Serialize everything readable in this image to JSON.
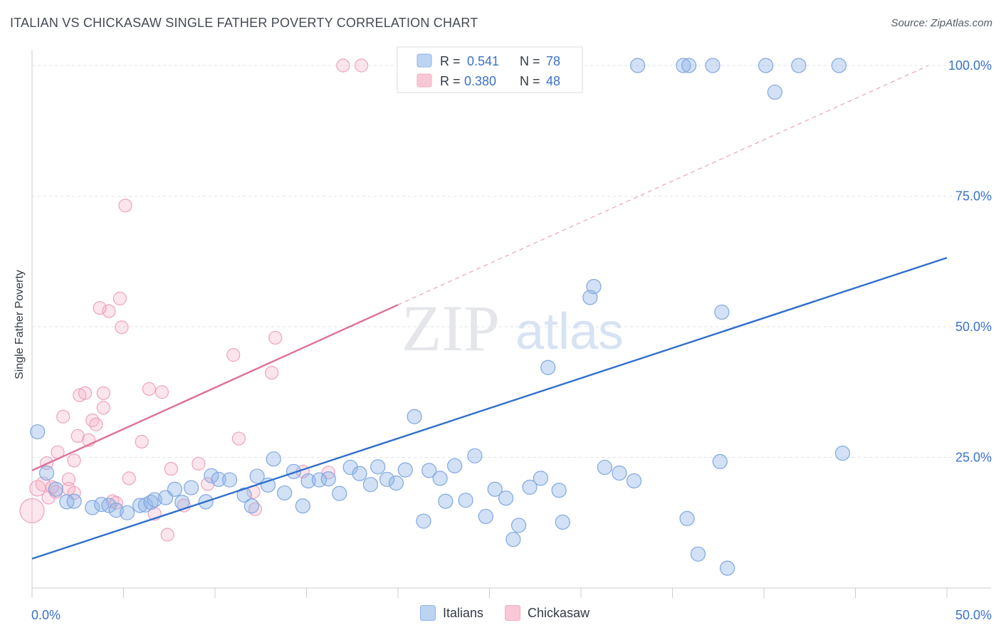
{
  "header": {
    "title": "ITALIAN VS CHICKASAW SINGLE FATHER POVERTY CORRELATION CHART",
    "source": "Source: ZipAtlas.com"
  },
  "watermark": {
    "zip": "ZIP",
    "atlas": "atlas"
  },
  "colors": {
    "blue": "#8fb4e8",
    "blue_line": "#2f6fcc",
    "pink": "#f5a9c0",
    "pink_line": "#e07096",
    "tick_blue": "#3a72c8"
  },
  "legend_box": [
    {
      "r_label": "R =",
      "r_value": "0.541",
      "n_label": "N =",
      "n_value": "78",
      "series": "Italians"
    },
    {
      "r_label": "R =",
      "r_value": "0.380",
      "n_label": "N =",
      "n_value": "48",
      "series": "Chickasaw"
    }
  ],
  "legend_bottom": [
    {
      "label": "Italians",
      "series": "Italians"
    },
    {
      "label": "Chickasaw",
      "series": "Chickasaw"
    }
  ],
  "chart_data": {
    "type": "scatter",
    "title": "ITALIAN VS CHICKASAW SINGLE FATHER POVERTY CORRELATION CHART",
    "xlabel": "",
    "ylabel": "Single Father Poverty",
    "xlim": [
      0,
      50
    ],
    "ylim": [
      0,
      103
    ],
    "x_tick_labels": [
      "0.0%",
      "50.0%"
    ],
    "y_ticks": [
      25,
      50,
      75,
      100
    ],
    "y_tick_labels": [
      "25.0%",
      "50.0%",
      "75.0%",
      "100.0%"
    ],
    "grid": true,
    "series": [
      {
        "name": "Italians",
        "r": 0.541,
        "n": 78,
        "trend": {
          "x": [
            0,
            50
          ],
          "y": [
            5.6,
            63.2
          ],
          "style": "solid"
        },
        "points": [
          [
            0.3,
            29.9
          ],
          [
            0.8,
            22.0
          ],
          [
            1.3,
            18.9
          ],
          [
            1.9,
            16.5
          ],
          [
            2.3,
            16.6
          ],
          [
            3.3,
            15.4
          ],
          [
            3.8,
            16.0
          ],
          [
            4.2,
            15.8
          ],
          [
            4.6,
            14.9
          ],
          [
            5.2,
            14.4
          ],
          [
            5.9,
            15.8
          ],
          [
            6.2,
            15.9
          ],
          [
            6.5,
            16.4
          ],
          [
            6.7,
            16.9
          ],
          [
            7.3,
            17.3
          ],
          [
            7.8,
            18.9
          ],
          [
            8.2,
            16.4
          ],
          [
            8.7,
            19.2
          ],
          [
            9.5,
            16.5
          ],
          [
            9.8,
            21.5
          ],
          [
            10.2,
            20.8
          ],
          [
            10.8,
            20.7
          ],
          [
            11.6,
            17.8
          ],
          [
            12.0,
            15.7
          ],
          [
            12.3,
            21.4
          ],
          [
            12.9,
            19.7
          ],
          [
            13.2,
            24.7
          ],
          [
            13.8,
            18.2
          ],
          [
            14.3,
            22.3
          ],
          [
            14.8,
            15.7
          ],
          [
            15.1,
            20.5
          ],
          [
            15.7,
            20.7
          ],
          [
            16.2,
            20.9
          ],
          [
            16.8,
            18.1
          ],
          [
            17.4,
            23.1
          ],
          [
            17.9,
            21.9
          ],
          [
            18.5,
            19.8
          ],
          [
            18.9,
            23.2
          ],
          [
            19.4,
            20.8
          ],
          [
            19.9,
            20.1
          ],
          [
            20.4,
            22.6
          ],
          [
            20.9,
            32.8
          ],
          [
            21.4,
            12.8
          ],
          [
            21.7,
            22.5
          ],
          [
            22.3,
            21.0
          ],
          [
            22.6,
            16.6
          ],
          [
            23.1,
            23.4
          ],
          [
            23.7,
            16.8
          ],
          [
            24.2,
            25.3
          ],
          [
            24.8,
            13.7
          ],
          [
            25.3,
            18.9
          ],
          [
            25.9,
            17.2
          ],
          [
            26.3,
            9.3
          ],
          [
            26.6,
            12.0
          ],
          [
            27.2,
            19.3
          ],
          [
            27.8,
            21.0
          ],
          [
            28.2,
            42.2
          ],
          [
            28.8,
            18.7
          ],
          [
            29.0,
            12.6
          ],
          [
            30.5,
            55.6
          ],
          [
            30.7,
            57.7
          ],
          [
            31.3,
            23.1
          ],
          [
            32.1,
            22.0
          ],
          [
            32.9,
            20.5
          ],
          [
            33.1,
            100.0
          ],
          [
            35.6,
            100.0
          ],
          [
            35.9,
            100.0
          ],
          [
            35.8,
            13.3
          ],
          [
            36.4,
            6.5
          ],
          [
            37.2,
            100.0
          ],
          [
            37.6,
            24.2
          ],
          [
            37.7,
            52.8
          ],
          [
            38.0,
            3.8
          ],
          [
            40.1,
            100.0
          ],
          [
            40.6,
            94.9
          ],
          [
            41.9,
            100.0
          ],
          [
            44.1,
            100.0
          ],
          [
            44.3,
            25.8
          ]
        ],
        "sizes": [
          20,
          20,
          20,
          20,
          20,
          20,
          20,
          20,
          20,
          20,
          20,
          20,
          20,
          20,
          20,
          20,
          20,
          20,
          20,
          20,
          20,
          20,
          20,
          20,
          20,
          20,
          20,
          20,
          20,
          20,
          20,
          20,
          20,
          20,
          20,
          20,
          20,
          20,
          20,
          20,
          20,
          20,
          20,
          20,
          20,
          20,
          20,
          20,
          20,
          20,
          20,
          20,
          20,
          20,
          20,
          20,
          20,
          20,
          20,
          20,
          20,
          20,
          20,
          20,
          20,
          20,
          20,
          20,
          20,
          20,
          20,
          20,
          20,
          20,
          20,
          20,
          20,
          20
        ]
      },
      {
        "name": "Chickasaw",
        "r": 0.38,
        "n": 48,
        "trend": {
          "x": [
            0,
            20
          ],
          "y": [
            22.5,
            54.2
          ],
          "style": "solid",
          "extension": {
            "x": [
              20,
              49
            ],
            "y": [
              54.2,
              100.0
            ],
            "style": "dashed"
          }
        },
        "points": [
          [
            0.0,
            14.8
          ],
          [
            0.3,
            19.1
          ],
          [
            0.6,
            19.9
          ],
          [
            0.9,
            17.3
          ],
          [
            0.8,
            23.9
          ],
          [
            1.1,
            19.3
          ],
          [
            1.3,
            18.4
          ],
          [
            1.4,
            26.0
          ],
          [
            1.7,
            32.8
          ],
          [
            2.0,
            19.0
          ],
          [
            2.3,
            18.2
          ],
          [
            2.3,
            24.4
          ],
          [
            2.5,
            29.1
          ],
          [
            2.6,
            36.9
          ],
          [
            2.9,
            37.3
          ],
          [
            3.1,
            28.3
          ],
          [
            3.3,
            32.1
          ],
          [
            3.5,
            31.3
          ],
          [
            3.7,
            53.6
          ],
          [
            3.9,
            37.3
          ],
          [
            3.9,
            34.5
          ],
          [
            4.2,
            53.0
          ],
          [
            4.4,
            16.6
          ],
          [
            4.6,
            16.3
          ],
          [
            4.8,
            55.4
          ],
          [
            4.9,
            49.9
          ],
          [
            5.1,
            73.2
          ],
          [
            5.3,
            21.0
          ],
          [
            6.0,
            28.0
          ],
          [
            6.4,
            38.1
          ],
          [
            6.7,
            14.2
          ],
          [
            7.1,
            37.5
          ],
          [
            7.4,
            10.2
          ],
          [
            7.6,
            22.8
          ],
          [
            8.3,
            15.8
          ],
          [
            9.1,
            23.8
          ],
          [
            9.6,
            19.9
          ],
          [
            11.0,
            44.6
          ],
          [
            11.3,
            28.6
          ],
          [
            12.1,
            18.4
          ],
          [
            12.2,
            15.1
          ],
          [
            13.1,
            41.2
          ],
          [
            13.3,
            47.9
          ],
          [
            14.8,
            22.3
          ],
          [
            16.2,
            22.1
          ],
          [
            17.0,
            100.0
          ],
          [
            18.0,
            100.0
          ],
          [
            2.0,
            20.8
          ]
        ],
        "sizes": [
          34,
          22,
          20,
          18,
          18,
          18,
          18,
          18,
          18,
          18,
          18,
          18,
          18,
          18,
          18,
          18,
          18,
          18,
          18,
          18,
          18,
          18,
          18,
          18,
          18,
          18,
          18,
          18,
          18,
          18,
          18,
          18,
          18,
          18,
          18,
          18,
          18,
          18,
          18,
          18,
          18,
          18,
          18,
          18,
          18,
          18,
          18,
          18
        ]
      }
    ]
  }
}
